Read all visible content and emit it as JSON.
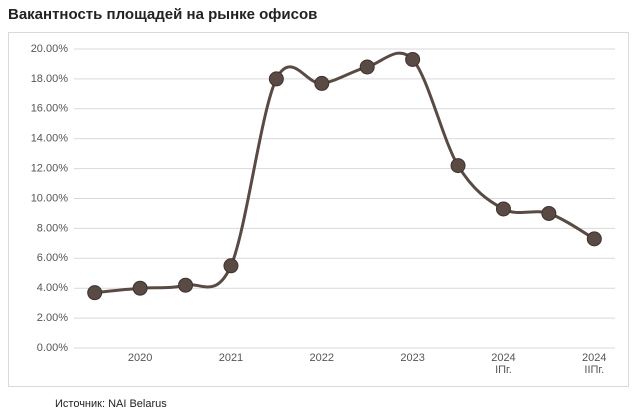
{
  "title": "Вакантность площадей на рынке офисов",
  "source": "Источник: NAI Belarus",
  "chart_data": {
    "type": "line",
    "categories": [
      null,
      "2020",
      null,
      "2021",
      null,
      "2022",
      null,
      "2023",
      null,
      "2024\nIПг.",
      null,
      "2024\nIIПг."
    ],
    "series": [
      {
        "color": "#5a4a44",
        "values": [
          3.7,
          4.0,
          4.2,
          5.5,
          18.0,
          17.7,
          18.8,
          19.3,
          12.2,
          9.3,
          9.0,
          7.3
        ]
      }
    ],
    "ylim": [
      0,
      20
    ],
    "yticks": [
      {
        "value": 0,
        "label": "0.00%"
      },
      {
        "value": 2,
        "label": "2.00%"
      },
      {
        "value": 4,
        "label": "4.00%"
      },
      {
        "value": 6,
        "label": "6.00%"
      },
      {
        "value": 8,
        "label": "8.00%"
      },
      {
        "value": 10,
        "label": "10.00%"
      },
      {
        "value": 12,
        "label": "12.00%"
      },
      {
        "value": 14,
        "label": "14.00%"
      },
      {
        "value": 16,
        "label": "16.00%"
      },
      {
        "value": 18,
        "label": "18.00%"
      },
      {
        "value": 20,
        "label": "20.00%"
      }
    ],
    "grid": true,
    "smooth": true
  }
}
